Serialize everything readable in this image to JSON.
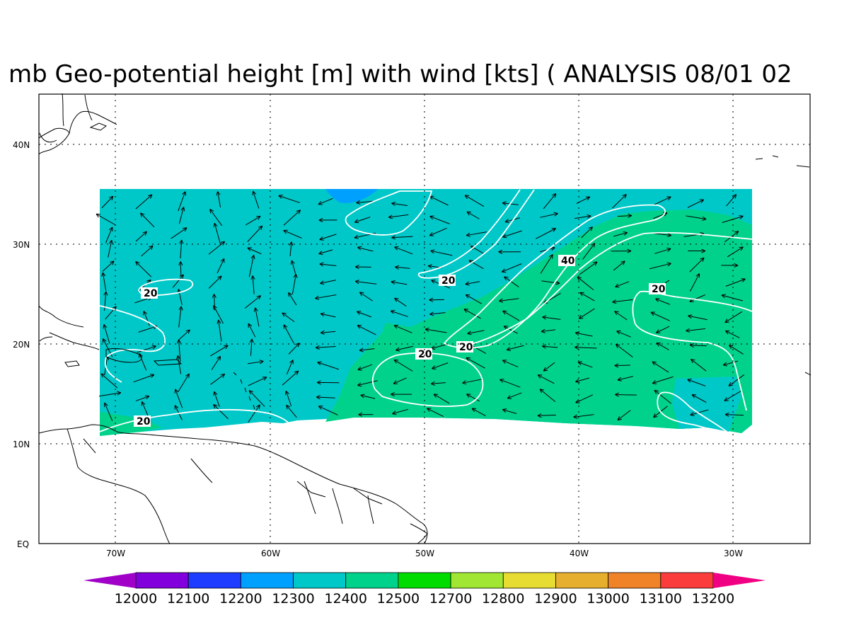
{
  "title": "mb Geo-potential height [m] with wind [kts] ( ANALYSIS 08/01 02",
  "colors": {
    "background": "#ffffff",
    "land_outline": "#000000",
    "contour": "#ffffff",
    "arrow": "#000000",
    "field_12300": "#00c8c8",
    "field_12400": "#00d28c",
    "field_12200": "#00a0ff"
  },
  "axes": {
    "x_ticks": [
      "70W",
      "60W",
      "50W",
      "40W",
      "30W"
    ],
    "y_ticks": [
      "40N",
      "30N",
      "20N",
      "10N",
      "EQ"
    ]
  },
  "colorbar": {
    "colors": [
      "#a000c8",
      "#8200dc",
      "#1e3cff",
      "#00a0ff",
      "#00c8c8",
      "#00d28c",
      "#00dc00",
      "#a0e632",
      "#e6dc32",
      "#e6af2d",
      "#f08228",
      "#fa3c3c",
      "#f00082"
    ],
    "labels": [
      "12000",
      "12100",
      "12200",
      "12300",
      "12400",
      "12500",
      "12700",
      "12800",
      "12900",
      "13000",
      "13100",
      "13200"
    ]
  },
  "contour_labels": [
    {
      "text": "20"
    },
    {
      "text": "20"
    },
    {
      "text": "40"
    },
    {
      "text": "20"
    },
    {
      "text": "20"
    },
    {
      "text": "20"
    },
    {
      "text": "20"
    }
  ]
}
